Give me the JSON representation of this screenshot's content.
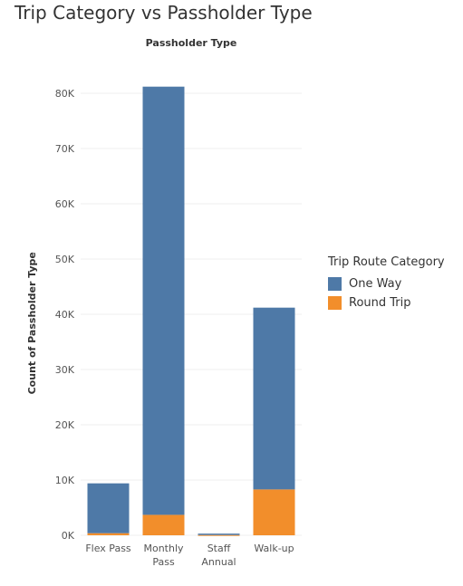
{
  "title": "Trip Category vs Passholder Type",
  "chart_data": {
    "type": "bar",
    "stacked": true,
    "column_header": "Passholder Type",
    "ylabel": "Count of Passholder Type",
    "categories": [
      [
        "Flex Pass"
      ],
      [
        "Monthly",
        "Pass"
      ],
      [
        "Staff",
        "Annual"
      ],
      [
        "Walk-up"
      ]
    ],
    "series": [
      {
        "name": "Round Trip",
        "color": "#f28e2b",
        "values": [
          380,
          3700,
          50,
          8300
        ]
      },
      {
        "name": "One Way",
        "color": "#4e79a7",
        "values": [
          9020,
          77500,
          250,
          32900
        ]
      }
    ],
    "ylim": [
      0,
      85000
    ],
    "yticks": [
      0,
      10000,
      20000,
      30000,
      40000,
      50000,
      60000,
      70000,
      80000
    ],
    "ytick_labels": [
      "0K",
      "10K",
      "20K",
      "30K",
      "40K",
      "50K",
      "60K",
      "70K",
      "80K"
    ],
    "grid": true,
    "legend": {
      "title": "Trip Route Category",
      "position": "right",
      "items": [
        {
          "label": "One Way",
          "color": "#4e79a7"
        },
        {
          "label": "Round Trip",
          "color": "#f28e2b"
        }
      ]
    }
  }
}
